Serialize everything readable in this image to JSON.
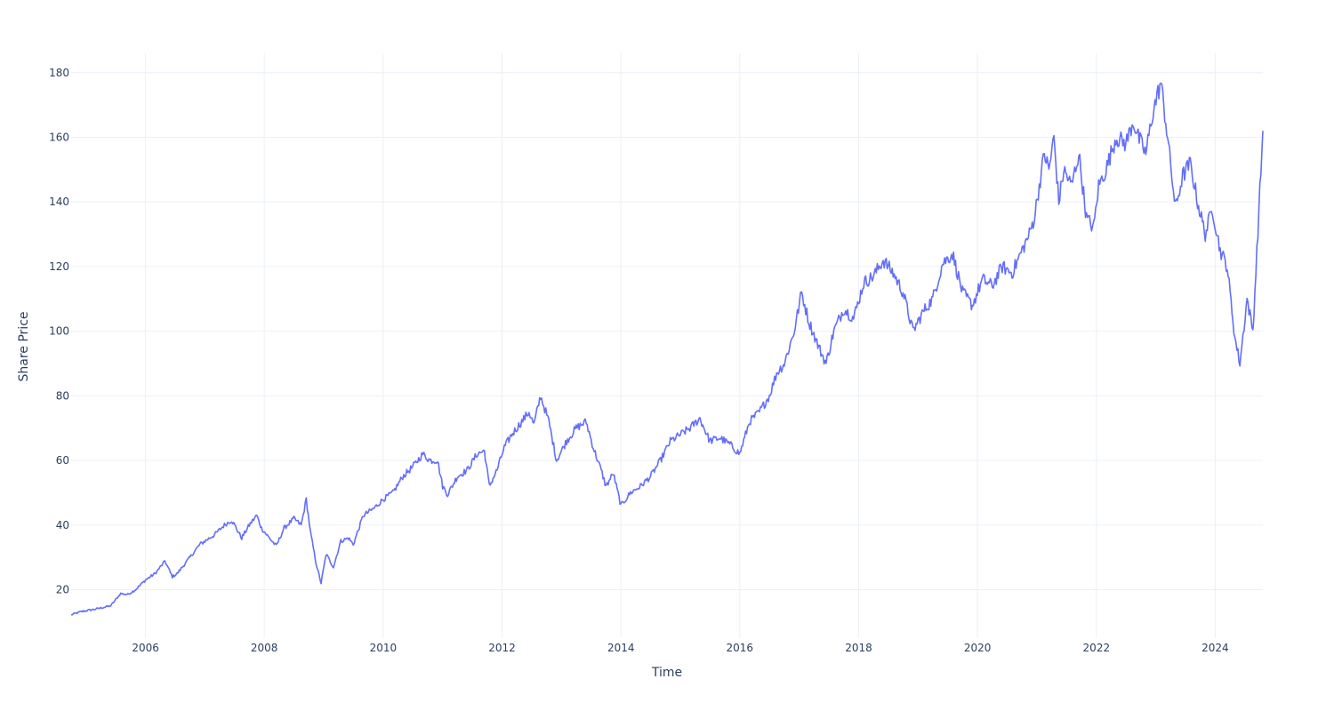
{
  "chart_data": {
    "type": "line",
    "title": "",
    "xlabel": "Time",
    "ylabel": "Share Price",
    "xlim": [
      "2004-10-01",
      "2024-10-20"
    ],
    "ylim": [
      5,
      186
    ],
    "x_ticks": [
      "2006",
      "2008",
      "2010",
      "2012",
      "2014",
      "2016",
      "2018",
      "2020",
      "2022",
      "2024"
    ],
    "y_ticks": [
      20,
      40,
      60,
      80,
      100,
      120,
      140,
      160,
      180
    ],
    "grid": true,
    "legend": "none",
    "colors": {
      "line": "#636efa",
      "grid": "#ebf0f8",
      "text": "#2a3f5f",
      "background": "#ffffff"
    },
    "series": [
      {
        "points": [
          [
            "2004-10-01",
            12.2
          ],
          [
            "2004-12-01",
            13.2
          ],
          [
            "2005-03-01",
            14.0
          ],
          [
            "2005-06-01",
            15.0
          ],
          [
            "2005-08-01",
            18.8
          ],
          [
            "2005-09-15",
            18.5
          ],
          [
            "2005-11-01",
            20.0
          ],
          [
            "2006-01-01",
            23.0
          ],
          [
            "2006-03-01",
            25.0
          ],
          [
            "2006-05-01",
            28.8
          ],
          [
            "2006-06-15",
            24.0
          ],
          [
            "2006-07-15",
            25.0
          ],
          [
            "2006-10-01",
            30.0
          ],
          [
            "2006-12-01",
            34.0
          ],
          [
            "2007-03-01",
            37.0
          ],
          [
            "2007-05-01",
            40.0
          ],
          [
            "2007-06-15",
            41.5
          ],
          [
            "2007-08-15",
            36.0
          ],
          [
            "2007-10-01",
            40.0
          ],
          [
            "2007-11-15",
            43.0
          ],
          [
            "2007-12-15",
            39.0
          ],
          [
            "2008-02-01",
            36.0
          ],
          [
            "2008-03-15",
            33.5
          ],
          [
            "2008-05-01",
            39.0
          ],
          [
            "2008-07-01",
            42.0
          ],
          [
            "2008-08-15",
            40.0
          ],
          [
            "2008-09-15",
            48.0
          ],
          [
            "2008-10-10",
            38.0
          ],
          [
            "2008-11-15",
            28.0
          ],
          [
            "2008-12-15",
            22.0
          ],
          [
            "2009-01-15",
            31.0
          ],
          [
            "2009-03-01",
            27.0
          ],
          [
            "2009-04-15",
            35.0
          ],
          [
            "2009-06-01",
            36.0
          ],
          [
            "2009-07-01",
            34.0
          ],
          [
            "2009-09-01",
            43.0
          ],
          [
            "2009-11-01",
            45.0
          ],
          [
            "2010-01-01",
            48.0
          ],
          [
            "2010-03-01",
            50.0
          ],
          [
            "2010-05-01",
            55.0
          ],
          [
            "2010-07-01",
            58.0
          ],
          [
            "2010-09-01",
            62.0
          ],
          [
            "2010-10-15",
            60.0
          ],
          [
            "2010-12-01",
            60.0
          ],
          [
            "2011-01-01",
            52.0
          ],
          [
            "2011-02-01",
            49.5
          ],
          [
            "2011-04-01",
            55.0
          ],
          [
            "2011-06-01",
            57.0
          ],
          [
            "2011-08-01",
            62.0
          ],
          [
            "2011-09-15",
            63.0
          ],
          [
            "2011-10-15",
            52.0
          ],
          [
            "2011-12-01",
            57.0
          ],
          [
            "2012-01-15",
            64.0
          ],
          [
            "2012-03-01",
            68.0
          ],
          [
            "2012-05-01",
            72.0
          ],
          [
            "2012-06-15",
            75.0
          ],
          [
            "2012-07-15",
            71.0
          ],
          [
            "2012-08-25",
            80.0
          ],
          [
            "2012-10-15",
            72.0
          ],
          [
            "2012-12-01",
            60.0
          ],
          [
            "2013-02-01",
            66.0
          ],
          [
            "2013-04-01",
            70.0
          ],
          [
            "2013-06-01",
            72.0
          ],
          [
            "2013-07-15",
            64.0
          ],
          [
            "2013-09-01",
            57.0
          ],
          [
            "2013-10-01",
            52.0
          ],
          [
            "2013-11-15",
            56.0
          ],
          [
            "2014-01-01",
            46.0
          ],
          [
            "2014-03-01",
            50.0
          ],
          [
            "2014-05-01",
            52.0
          ],
          [
            "2014-07-01",
            55.0
          ],
          [
            "2014-09-01",
            60.0
          ],
          [
            "2014-11-01",
            66.0
          ],
          [
            "2015-01-01",
            68.0
          ],
          [
            "2015-03-01",
            70.0
          ],
          [
            "2015-05-01",
            73.0
          ],
          [
            "2015-07-01",
            66.0
          ],
          [
            "2015-09-01",
            67.0
          ],
          [
            "2015-11-01",
            65.0
          ],
          [
            "2016-01-01",
            62.0
          ],
          [
            "2016-03-01",
            72.0
          ],
          [
            "2016-05-01",
            75.0
          ],
          [
            "2016-07-01",
            80.0
          ],
          [
            "2016-08-15",
            87.0
          ],
          [
            "2016-10-01",
            90.0
          ],
          [
            "2016-12-01",
            100.0
          ],
          [
            "2017-01-15",
            112.0
          ],
          [
            "2017-03-01",
            103.0
          ],
          [
            "2017-05-01",
            95.0
          ],
          [
            "2017-06-15",
            90.0
          ],
          [
            "2017-08-01",
            100.0
          ],
          [
            "2017-10-01",
            107.0
          ],
          [
            "2017-12-01",
            104.0
          ],
          [
            "2018-02-01",
            115.0
          ],
          [
            "2018-04-01",
            117.0
          ],
          [
            "2018-06-01",
            122.0
          ],
          [
            "2018-08-01",
            118.0
          ],
          [
            "2018-10-01",
            112.0
          ],
          [
            "2018-12-01",
            100.0
          ],
          [
            "2019-02-01",
            106.0
          ],
          [
            "2019-04-01",
            110.0
          ],
          [
            "2019-06-01",
            121.0
          ],
          [
            "2019-08-01",
            124.0
          ],
          [
            "2019-10-01",
            112.0
          ],
          [
            "2019-12-01",
            108.0
          ],
          [
            "2020-02-01",
            116.0
          ],
          [
            "2020-04-01",
            114.0
          ],
          [
            "2020-06-01",
            120.0
          ],
          [
            "2020-08-01",
            118.0
          ],
          [
            "2020-10-01",
            125.0
          ],
          [
            "2020-11-15",
            130.0
          ],
          [
            "2020-12-15",
            135.0
          ],
          [
            "2021-01-15",
            145.0
          ],
          [
            "2021-02-15",
            155.0
          ],
          [
            "2021-03-15",
            150.0
          ],
          [
            "2021-04-15",
            160.0
          ],
          [
            "2021-05-15",
            140.0
          ],
          [
            "2021-06-15",
            150.0
          ],
          [
            "2021-08-01",
            145.0
          ],
          [
            "2021-09-15",
            155.0
          ],
          [
            "2021-11-01",
            135.0
          ],
          [
            "2021-12-15",
            132.0
          ],
          [
            "2022-01-15",
            145.0
          ],
          [
            "2022-03-01",
            150.0
          ],
          [
            "2022-05-01",
            160.0
          ],
          [
            "2022-07-01",
            158.0
          ],
          [
            "2022-08-15",
            165.0
          ],
          [
            "2022-09-15",
            160.0
          ],
          [
            "2022-11-01",
            155.0
          ],
          [
            "2022-12-15",
            168.0
          ],
          [
            "2023-02-01",
            177.0
          ],
          [
            "2023-03-15",
            160.0
          ],
          [
            "2023-05-01",
            138.0
          ],
          [
            "2023-06-15",
            148.0
          ],
          [
            "2023-08-01",
            152.0
          ],
          [
            "2023-09-15",
            140.0
          ],
          [
            "2023-11-01",
            130.0
          ],
          [
            "2023-12-15",
            138.0
          ],
          [
            "2024-02-01",
            125.0
          ],
          [
            "2024-03-15",
            120.0
          ],
          [
            "2024-05-01",
            98.0
          ],
          [
            "2024-06-01",
            90.0
          ],
          [
            "2024-07-15",
            110.0
          ],
          [
            "2024-08-20",
            100.0
          ],
          [
            "2024-10-20",
            162.0
          ]
        ]
      }
    ]
  }
}
